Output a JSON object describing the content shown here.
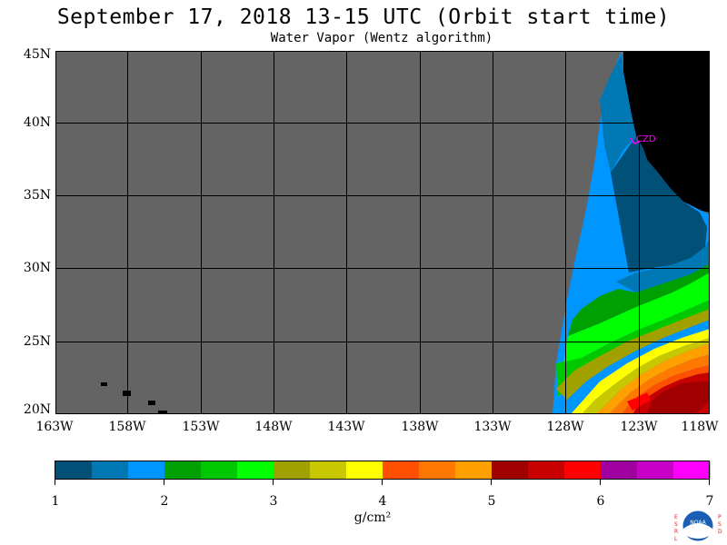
{
  "header": {
    "title": "September 17, 2018  13-15 UTC  (Orbit start time)",
    "subtitle": "Water Vapor (Wentz algorithm)"
  },
  "map": {
    "lat_labels": [
      "45N",
      "40N",
      "35N",
      "30N",
      "25N",
      "20N"
    ],
    "lon_labels": [
      "163W",
      "158W",
      "153W",
      "148W",
      "143W",
      "138W",
      "133W",
      "128W",
      "123W",
      "118W"
    ],
    "station_label": "CZD",
    "colors": {
      "ocean_nodata": "#646464",
      "land": "#000000",
      "station": "#ff00ff"
    }
  },
  "colorbar": {
    "tick_labels": [
      "1",
      "2",
      "3",
      "4",
      "5",
      "6",
      "7"
    ],
    "units": "g/cm²",
    "colors": [
      "#005078",
      "#0078b4",
      "#0096ff",
      "#00a000",
      "#00c800",
      "#00ff00",
      "#a0a000",
      "#c8c800",
      "#ffff00",
      "#ff5000",
      "#ff7800",
      "#ffa000",
      "#a00000",
      "#c80000",
      "#ff0000",
      "#a000a0",
      "#c800c8",
      "#ff00ff"
    ]
  },
  "logo": {
    "left_letters": "ESRL",
    "right_letters": "PSD",
    "center_text": "NOAA"
  }
}
